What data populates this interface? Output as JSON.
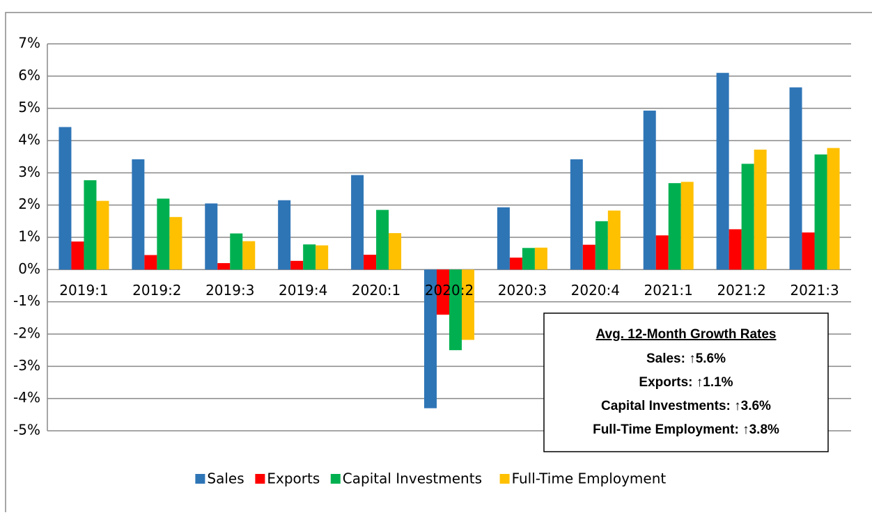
{
  "chart_data": {
    "type": "bar",
    "categories": [
      "2019:1",
      "2019:2",
      "2019:3",
      "2019:4",
      "2020:1",
      "2020:2",
      "2020:3",
      "2020:4",
      "2021:1",
      "2021:2",
      "2021:3"
    ],
    "series": [
      {
        "name": "Sales",
        "color": "#2e75b6",
        "values": [
          4.42,
          3.42,
          2.05,
          2.15,
          2.93,
          -4.3,
          1.93,
          3.42,
          4.93,
          6.1,
          5.65
        ]
      },
      {
        "name": "Exports",
        "color": "#ff0000",
        "values": [
          0.87,
          0.45,
          0.2,
          0.27,
          0.46,
          -1.4,
          0.37,
          0.77,
          1.06,
          1.25,
          1.15
        ]
      },
      {
        "name": "Capital Investments",
        "color": "#00b050",
        "values": [
          2.77,
          2.2,
          1.12,
          0.78,
          1.85,
          -2.5,
          0.67,
          1.5,
          2.68,
          3.28,
          3.57
        ]
      },
      {
        "name": "Full-Time Employment",
        "color": "#ffc000",
        "values": [
          2.13,
          1.63,
          0.88,
          0.75,
          1.13,
          -2.18,
          0.68,
          1.83,
          2.72,
          3.72,
          3.77
        ]
      }
    ],
    "ylim": [
      -5,
      7
    ],
    "yticks": [
      {
        "value": -5,
        "label": "-5%"
      },
      {
        "value": -4,
        "label": "-4%"
      },
      {
        "value": -3,
        "label": "-3%"
      },
      {
        "value": -2,
        "label": "-2%"
      },
      {
        "value": -1,
        "label": "-1%"
      },
      {
        "value": 0,
        "label": "0%"
      },
      {
        "value": 1,
        "label": "1%"
      },
      {
        "value": 2,
        "label": "2%"
      },
      {
        "value": 3,
        "label": "3%"
      },
      {
        "value": 4,
        "label": "4%"
      },
      {
        "value": 5,
        "label": "5%"
      },
      {
        "value": 6,
        "label": "6%"
      },
      {
        "value": 7,
        "label": "7%"
      }
    ],
    "grid": true,
    "legend": "bottom",
    "annotation": {
      "title": "Avg. 12-Month Growth Rates",
      "lines": [
        "Sales: ↑5.6%",
        "Exports: ↑1.1%",
        "Capital Investments: ↑3.6%",
        "Full-Time Employment: ↑3.8%"
      ]
    }
  }
}
